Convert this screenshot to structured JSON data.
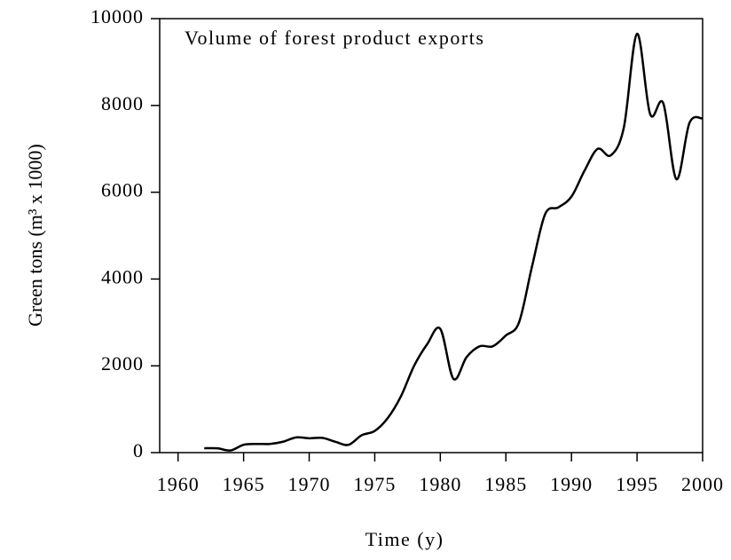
{
  "chart_data": {
    "type": "line",
    "title": "Volume of forest product exports",
    "x_label": "Time (y)",
    "y_label": "Green tons (m³ x 1000)",
    "x": [
      1962,
      1963,
      1964,
      1965,
      1966,
      1967,
      1968,
      1969,
      1970,
      1971,
      1972,
      1973,
      1974,
      1975,
      1976,
      1977,
      1978,
      1979,
      1980,
      1981,
      1982,
      1983,
      1984,
      1985,
      1986,
      1987,
      1988,
      1989,
      1990,
      1991,
      1992,
      1993,
      1994,
      1995,
      1996,
      1997,
      1998,
      1999,
      2000
    ],
    "series": [
      {
        "color": "#000000",
        "values": [
          100,
          100,
          50,
          180,
          200,
          200,
          250,
          350,
          330,
          340,
          250,
          180,
          400,
          500,
          800,
          1300,
          2000,
          2500,
          2850,
          1700,
          2200,
          2450,
          2450,
          2700,
          3000,
          4300,
          5500,
          5650,
          5900,
          6500,
          7000,
          6850,
          7500,
          9650,
          7800,
          8050,
          6300,
          7600,
          7700
        ]
      }
    ],
    "xlim": [
      1958.6,
      2000
    ],
    "xticks": [
      1960,
      1965,
      1970,
      1975,
      1980,
      1985,
      1990,
      1995,
      2000
    ],
    "ylim": [
      0,
      10000
    ],
    "yticks": [
      0,
      2000,
      4000,
      6000,
      8000,
      10000
    ]
  }
}
